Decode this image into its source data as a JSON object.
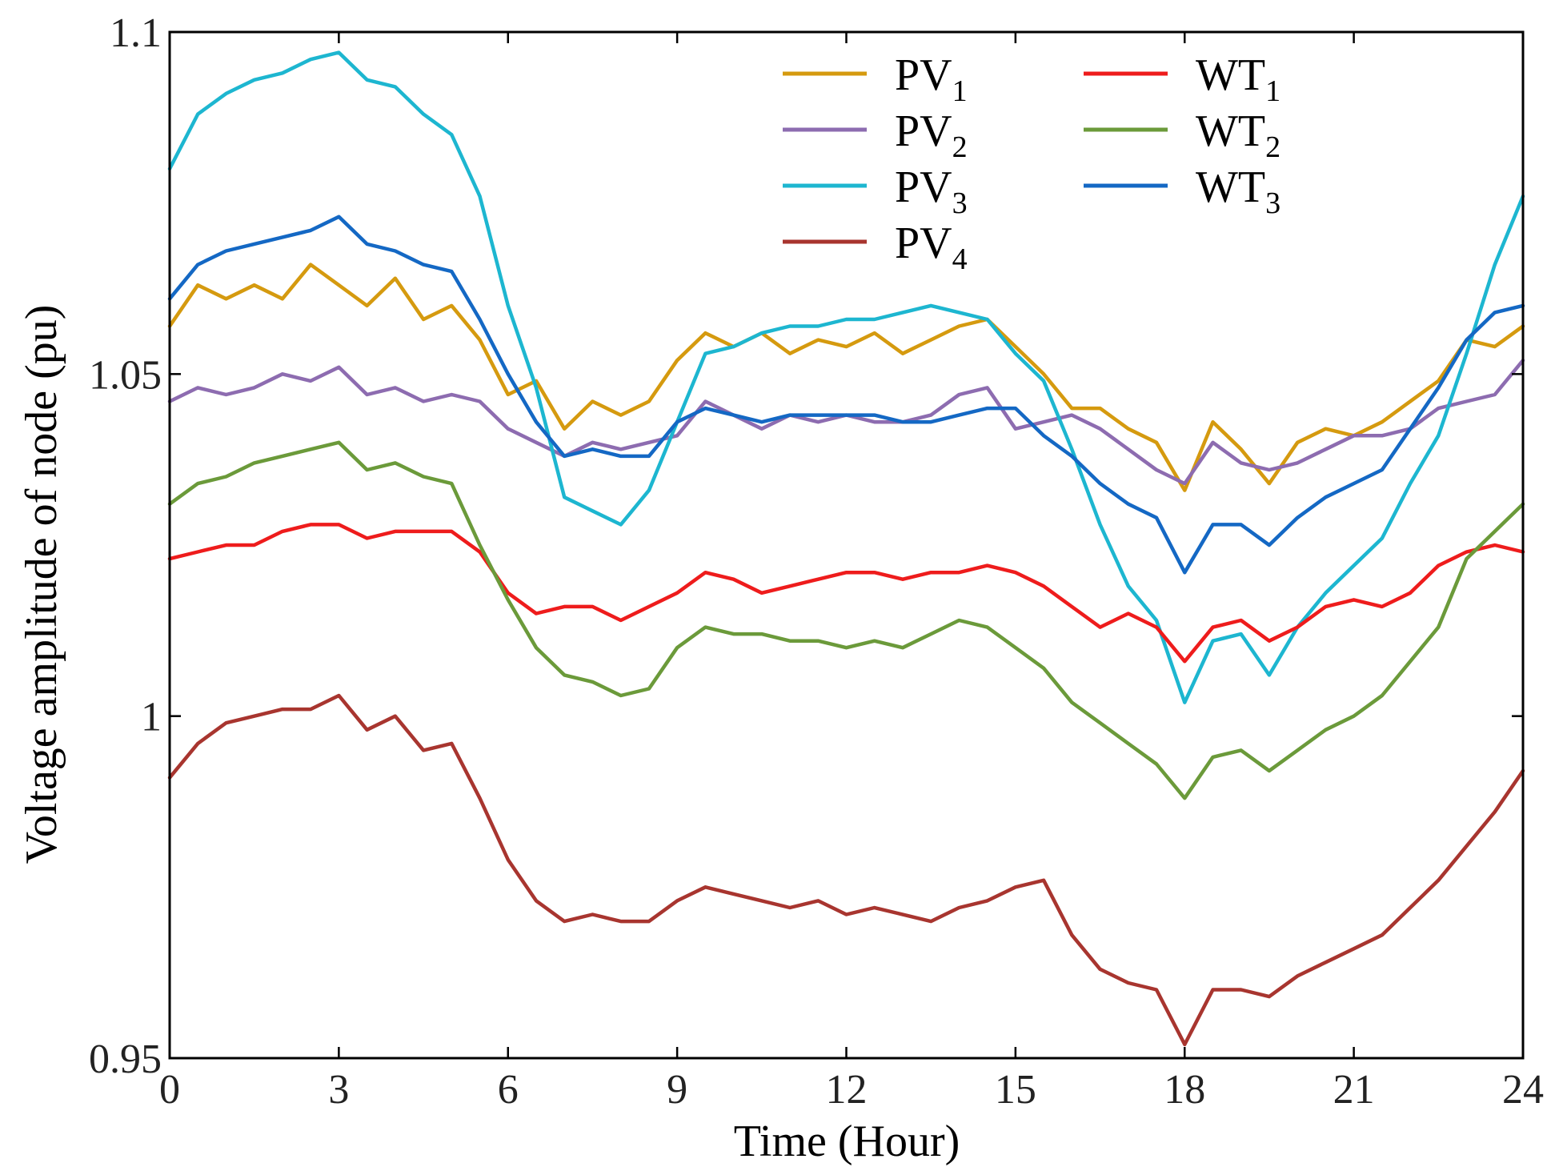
{
  "chart_data": {
    "type": "line",
    "title": "",
    "xlabel": "Time (Hour)",
    "ylabel": "Voltage amplitude of node (pu)",
    "xlim": [
      0,
      24
    ],
    "ylim": [
      0.95,
      1.1
    ],
    "xticks": [
      0,
      3,
      6,
      9,
      12,
      15,
      18,
      21,
      24
    ],
    "xtick_labels": [
      "0",
      "3",
      "6",
      "9",
      "12",
      "15",
      "18",
      "21",
      "24"
    ],
    "yticks": [
      0.95,
      1.0,
      1.05,
      1.1
    ],
    "ytick_labels": [
      "0.95",
      "1",
      "1.05",
      "1.1"
    ],
    "grid": false,
    "legend_position": "top-right",
    "x": [
      0,
      0.5,
      1,
      1.5,
      2,
      2.5,
      3,
      3.5,
      4,
      4.5,
      5,
      5.5,
      6,
      6.5,
      7,
      7.5,
      8,
      8.5,
      9,
      9.5,
      10,
      10.5,
      11,
      11.5,
      12,
      12.5,
      13,
      13.5,
      14,
      14.5,
      15,
      15.5,
      16,
      16.5,
      17,
      17.5,
      18,
      18.5,
      19,
      19.5,
      20,
      20.5,
      21,
      21.5,
      22,
      22.5,
      23,
      23.5,
      24
    ],
    "series": [
      {
        "name": "PV",
        "sub": "1",
        "color": "#d59a0f",
        "values": [
          1.057,
          1.063,
          1.061,
          1.063,
          1.061,
          1.066,
          1.063,
          1.06,
          1.064,
          1.058,
          1.06,
          1.055,
          1.047,
          1.049,
          1.042,
          1.046,
          1.044,
          1.046,
          1.052,
          1.056,
          1.054,
          1.056,
          1.053,
          1.055,
          1.054,
          1.056,
          1.053,
          1.055,
          1.057,
          1.058,
          1.054,
          1.05,
          1.045,
          1.045,
          1.042,
          1.04,
          1.033,
          1.043,
          1.039,
          1.034,
          1.04,
          1.042,
          1.041,
          1.043,
          1.046,
          1.049,
          1.055,
          1.054,
          1.057
        ]
      },
      {
        "name": "PV",
        "sub": "2",
        "color": "#8d6cb0",
        "values": [
          1.046,
          1.048,
          1.047,
          1.048,
          1.05,
          1.049,
          1.051,
          1.047,
          1.048,
          1.046,
          1.047,
          1.046,
          1.042,
          1.04,
          1.038,
          1.04,
          1.039,
          1.04,
          1.041,
          1.046,
          1.044,
          1.042,
          1.044,
          1.043,
          1.044,
          1.043,
          1.043,
          1.044,
          1.047,
          1.048,
          1.042,
          1.043,
          1.044,
          1.042,
          1.039,
          1.036,
          1.034,
          1.04,
          1.037,
          1.036,
          1.037,
          1.039,
          1.041,
          1.041,
          1.042,
          1.045,
          1.046,
          1.047,
          1.052
        ]
      },
      {
        "name": "PV",
        "sub": "3",
        "color": "#1db6d0",
        "values": [
          1.08,
          1.088,
          1.091,
          1.093,
          1.094,
          1.096,
          1.097,
          1.093,
          1.092,
          1.088,
          1.085,
          1.076,
          1.06,
          1.048,
          1.032,
          1.03,
          1.028,
          1.033,
          1.043,
          1.053,
          1.054,
          1.056,
          1.057,
          1.057,
          1.058,
          1.058,
          1.059,
          1.06,
          1.059,
          1.058,
          1.053,
          1.049,
          1.039,
          1.028,
          1.019,
          1.014,
          1.002,
          1.011,
          1.012,
          1.006,
          1.013,
          1.018,
          1.022,
          1.026,
          1.034,
          1.041,
          1.053,
          1.066,
          1.076
        ]
      },
      {
        "name": "PV",
        "sub": "4",
        "color": "#a8352f",
        "values": [
          0.991,
          0.996,
          0.999,
          1.0,
          1.001,
          1.001,
          1.003,
          0.998,
          1.0,
          0.995,
          0.996,
          0.988,
          0.979,
          0.973,
          0.97,
          0.971,
          0.97,
          0.97,
          0.973,
          0.975,
          0.974,
          0.973,
          0.972,
          0.973,
          0.971,
          0.972,
          0.971,
          0.97,
          0.972,
          0.973,
          0.975,
          0.976,
          0.968,
          0.963,
          0.961,
          0.96,
          0.952,
          0.96,
          0.96,
          0.959,
          0.962,
          0.964,
          0.966,
          0.968,
          0.972,
          0.976,
          0.981,
          0.986,
          0.992
        ]
      },
      {
        "name": "WT",
        "sub": "1",
        "color": "#ee1c1c",
        "values": [
          1.023,
          1.024,
          1.025,
          1.025,
          1.027,
          1.028,
          1.028,
          1.026,
          1.027,
          1.027,
          1.027,
          1.024,
          1.018,
          1.015,
          1.016,
          1.016,
          1.014,
          1.016,
          1.018,
          1.021,
          1.02,
          1.018,
          1.019,
          1.02,
          1.021,
          1.021,
          1.02,
          1.021,
          1.021,
          1.022,
          1.021,
          1.019,
          1.016,
          1.013,
          1.015,
          1.013,
          1.008,
          1.013,
          1.014,
          1.011,
          1.013,
          1.016,
          1.017,
          1.016,
          1.018,
          1.022,
          1.024,
          1.025,
          1.024
        ]
      },
      {
        "name": "WT",
        "sub": "2",
        "color": "#6b9a3a",
        "values": [
          1.031,
          1.034,
          1.035,
          1.037,
          1.038,
          1.039,
          1.04,
          1.036,
          1.037,
          1.035,
          1.034,
          1.025,
          1.017,
          1.01,
          1.006,
          1.005,
          1.003,
          1.004,
          1.01,
          1.013,
          1.012,
          1.012,
          1.011,
          1.011,
          1.01,
          1.011,
          1.01,
          1.012,
          1.014,
          1.013,
          1.01,
          1.007,
          1.002,
          0.999,
          0.996,
          0.993,
          0.988,
          0.994,
          0.995,
          0.992,
          0.995,
          0.998,
          1.0,
          1.003,
          1.008,
          1.013,
          1.023,
          1.027,
          1.031
        ]
      },
      {
        "name": "WT",
        "sub": "3",
        "color": "#1468c4",
        "values": [
          1.061,
          1.066,
          1.068,
          1.069,
          1.07,
          1.071,
          1.073,
          1.069,
          1.068,
          1.066,
          1.065,
          1.058,
          1.05,
          1.043,
          1.038,
          1.039,
          1.038,
          1.038,
          1.043,
          1.045,
          1.044,
          1.043,
          1.044,
          1.044,
          1.044,
          1.044,
          1.043,
          1.043,
          1.044,
          1.045,
          1.045,
          1.041,
          1.038,
          1.034,
          1.031,
          1.029,
          1.021,
          1.028,
          1.028,
          1.025,
          1.029,
          1.032,
          1.034,
          1.036,
          1.042,
          1.048,
          1.055,
          1.059,
          1.06
        ]
      }
    ]
  }
}
